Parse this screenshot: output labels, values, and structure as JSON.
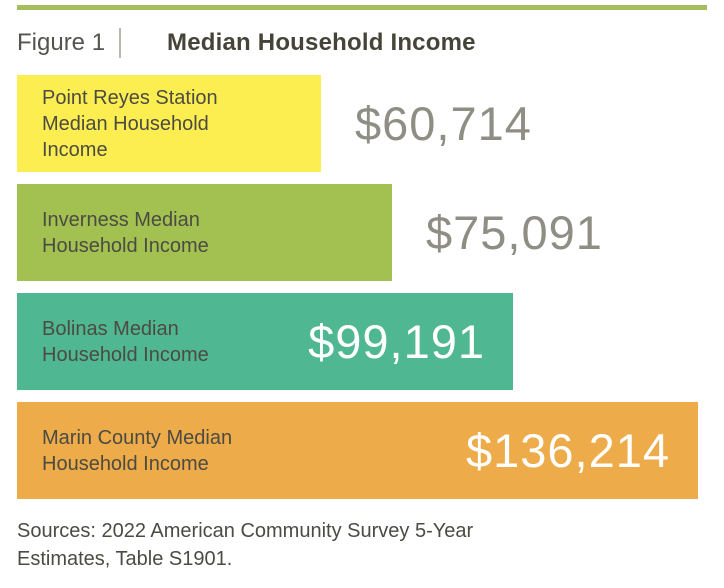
{
  "figure": {
    "label": "Figure 1",
    "title": "Median Household Income"
  },
  "chart_data": {
    "type": "bar",
    "orientation": "horizontal",
    "title": "Median Household Income",
    "figure_label": "Figure 1",
    "categories": [
      "Point Reyes Station Median Household Income",
      "Inverness Median Household Income",
      "Bolinas Median Household Income",
      "Marin County Median Household Income"
    ],
    "values": [
      60714,
      75091,
      99191,
      136214
    ],
    "value_labels": [
      "$60,714",
      "$75,091",
      "$99,191",
      "$136,214"
    ],
    "bar_colors": [
      "#fcee51",
      "#a2c151",
      "#50b793",
      "#edab49"
    ],
    "value_label_colors": [
      "#8f8e84",
      "#8f8e84",
      "#ffffff",
      "#ffffff"
    ],
    "value_label_placement": [
      "outside",
      "outside",
      "inside",
      "inside"
    ],
    "xlim": [
      0,
      140000
    ],
    "axis": "none",
    "grid": false,
    "legend": "none",
    "source_note": "Sources: 2022 American Community Survey 5-Year Estimates, Table S1901."
  },
  "footer": {
    "source_note": "Sources: 2022 American Community Survey 5-Year Estimates, Table S1901."
  },
  "colors": {
    "accent_rule": "#a6bd5d",
    "text_dark": "#4c4b43",
    "value_gray": "#8f8e84"
  }
}
